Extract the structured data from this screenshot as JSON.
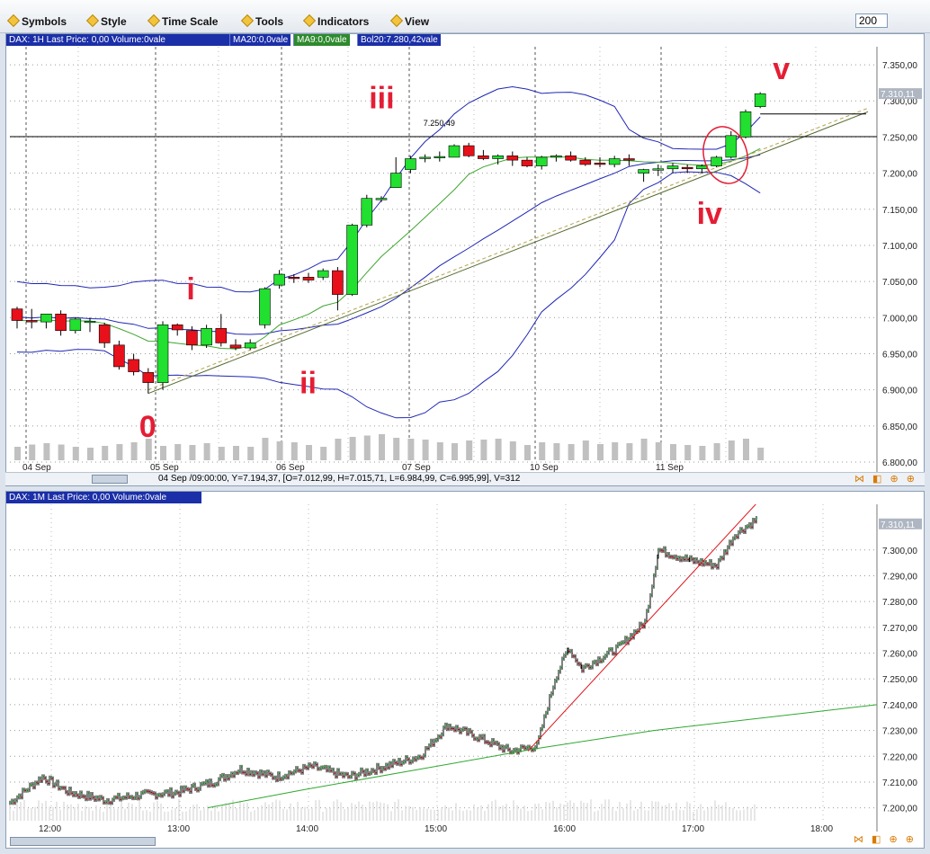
{
  "menu": {
    "symbols": "Symbols",
    "style": "Style",
    "time_scale": "Time Scale",
    "tools": "Tools",
    "indicators": "Indicators",
    "view": "View",
    "bars_count": "200"
  },
  "top_panel": {
    "header": "DAX: 1H Last Price: 0,00 Volume:0vale",
    "indicators": [
      "MA20:0,0vale",
      "MA9:0,0vale",
      "Bol20:7.280,42vale"
    ],
    "status": "04 Sep /09:00:00, Y=7.194,37, [O=7.012,99, H=7.015,71, L=6.984,99, C=6.995,99], V=312",
    "last_price_label": "7.310,11",
    "hline_label": "7.250,49",
    "wave_labels": [
      "0",
      "i",
      "ii",
      "iii",
      "iv",
      "v"
    ],
    "colors": {
      "up": "#21e02f",
      "down": "#e8101a",
      "bollinger": "#2027b4",
      "ma": "#3ea52e",
      "wave": "#e51d34"
    }
  },
  "bottom_panel": {
    "header": "DAX: 1M Last Price: 0,00 Volume:0vale",
    "last_price_label": "7.310,11"
  },
  "chart_data": [
    {
      "type": "candlestick",
      "title": "DAX: 1H",
      "ylim": [
        6800,
        7370
      ],
      "y_ticks": [
        "7.350,00",
        "7.300,00",
        "7.250,00",
        "7.200,00",
        "7.150,00",
        "7.100,00",
        "7.050,00",
        "7.000,00",
        "6.950,00",
        "6.900,00",
        "6.850,00",
        "6.800,00"
      ],
      "x_labels": [
        "04 Sep",
        "05 Sep",
        "06 Sep",
        "07 Sep",
        "10 Sep",
        "11 Sep"
      ],
      "candles": [
        {
          "o": 7012,
          "h": 7015,
          "l": 6985,
          "c": 6996
        },
        {
          "o": 6996,
          "h": 7012,
          "l": 6985,
          "c": 6994
        },
        {
          "o": 6994,
          "h": 7004,
          "l": 6985,
          "c": 7005
        },
        {
          "o": 7005,
          "h": 7010,
          "l": 6975,
          "c": 6982
        },
        {
          "o": 6982,
          "h": 7000,
          "l": 6978,
          "c": 6998
        },
        {
          "o": 6995,
          "h": 7000,
          "l": 6980,
          "c": 6995
        },
        {
          "o": 6990,
          "h": 6993,
          "l": 6958,
          "c": 6965
        },
        {
          "o": 6962,
          "h": 6968,
          "l": 6928,
          "c": 6932
        },
        {
          "o": 6942,
          "h": 6950,
          "l": 6920,
          "c": 6925
        },
        {
          "o": 6924,
          "h": 6930,
          "l": 6895,
          "c": 6910
        },
        {
          "o": 6910,
          "h": 6995,
          "l": 6900,
          "c": 6990
        },
        {
          "o": 6990,
          "h": 6992,
          "l": 6975,
          "c": 6983
        },
        {
          "o": 6982,
          "h": 6988,
          "l": 6955,
          "c": 6962
        },
        {
          "o": 6962,
          "h": 6990,
          "l": 6958,
          "c": 6985
        },
        {
          "o": 6985,
          "h": 7005,
          "l": 6960,
          "c": 6965
        },
        {
          "o": 6962,
          "h": 6970,
          "l": 6955,
          "c": 6958
        },
        {
          "o": 6958,
          "h": 6970,
          "l": 6955,
          "c": 6965
        },
        {
          "o": 6990,
          "h": 7042,
          "l": 6985,
          "c": 7040
        },
        {
          "o": 7045,
          "h": 7066,
          "l": 7040,
          "c": 7060
        },
        {
          "o": 7056,
          "h": 7060,
          "l": 7048,
          "c": 7054
        },
        {
          "o": 7056,
          "h": 7062,
          "l": 7048,
          "c": 7052
        },
        {
          "o": 7056,
          "h": 7068,
          "l": 7052,
          "c": 7065
        },
        {
          "o": 7065,
          "h": 7070,
          "l": 7010,
          "c": 7032
        },
        {
          "o": 7032,
          "h": 7130,
          "l": 7030,
          "c": 7128
        },
        {
          "o": 7128,
          "h": 7170,
          "l": 7125,
          "c": 7165
        },
        {
          "o": 7165,
          "h": 7168,
          "l": 7160,
          "c": 7165
        },
        {
          "o": 7180,
          "h": 7222,
          "l": 7180,
          "c": 7200
        },
        {
          "o": 7205,
          "h": 7224,
          "l": 7200,
          "c": 7220
        },
        {
          "o": 7222,
          "h": 7226,
          "l": 7215,
          "c": 7222
        },
        {
          "o": 7222,
          "h": 7230,
          "l": 7216,
          "c": 7223
        },
        {
          "o": 7222,
          "h": 7240,
          "l": 7222,
          "c": 7238
        },
        {
          "o": 7238,
          "h": 7242,
          "l": 7222,
          "c": 7224
        },
        {
          "o": 7224,
          "h": 7232,
          "l": 7218,
          "c": 7220
        },
        {
          "o": 7220,
          "h": 7226,
          "l": 7212,
          "c": 7224
        },
        {
          "o": 7224,
          "h": 7230,
          "l": 7210,
          "c": 7218
        },
        {
          "o": 7218,
          "h": 7222,
          "l": 7208,
          "c": 7210
        },
        {
          "o": 7210,
          "h": 7224,
          "l": 7205,
          "c": 7222
        },
        {
          "o": 7222,
          "h": 7226,
          "l": 7216,
          "c": 7224
        },
        {
          "o": 7224,
          "h": 7230,
          "l": 7216,
          "c": 7218
        },
        {
          "o": 7218,
          "h": 7222,
          "l": 7210,
          "c": 7212
        },
        {
          "o": 7214,
          "h": 7222,
          "l": 7208,
          "c": 7212
        },
        {
          "o": 7212,
          "h": 7224,
          "l": 7208,
          "c": 7220
        },
        {
          "o": 7220,
          "h": 7226,
          "l": 7210,
          "c": 7218
        },
        {
          "o": 7200,
          "h": 7206,
          "l": 7188,
          "c": 7205
        },
        {
          "o": 7205,
          "h": 7212,
          "l": 7196,
          "c": 7206
        },
        {
          "o": 7206,
          "h": 7214,
          "l": 7200,
          "c": 7210
        },
        {
          "o": 7208,
          "h": 7212,
          "l": 7200,
          "c": 7206
        },
        {
          "o": 7206,
          "h": 7212,
          "l": 7200,
          "c": 7210
        },
        {
          "o": 7210,
          "h": 7224,
          "l": 7208,
          "c": 7222
        },
        {
          "o": 7222,
          "h": 7258,
          "l": 7220,
          "c": 7252
        },
        {
          "o": 7250,
          "h": 7288,
          "l": 7248,
          "c": 7285
        },
        {
          "o": 7292,
          "h": 7312,
          "l": 7290,
          "c": 7310
        }
      ],
      "volume": [
        30,
        35,
        38,
        35,
        30,
        28,
        32,
        36,
        40,
        48,
        32,
        36,
        34,
        38,
        30,
        32,
        30,
        50,
        42,
        40,
        34,
        30,
        48,
        52,
        55,
        58,
        50,
        48,
        46,
        40,
        38,
        44,
        46,
        48,
        42,
        34,
        40,
        38,
        36,
        44,
        36,
        40,
        38,
        48,
        40,
        36,
        34,
        32,
        38,
        44,
        48,
        28
      ],
      "hline": 7250.49,
      "last_price": 7310.11
    },
    {
      "type": "candlestick",
      "title": "DAX: 1M",
      "ylim": [
        7195,
        7317
      ],
      "y_ticks": [
        "7.300,00",
        "7.290,00",
        "7.280,00",
        "7.270,00",
        "7.260,00",
        "7.250,00",
        "7.240,00",
        "7.230,00",
        "7.220,00",
        "7.210,00",
        "7.200,00"
      ],
      "x_labels": [
        "12:00",
        "13:00",
        "14:00",
        "15:00",
        "16:00",
        "17:00",
        "18:00"
      ],
      "last_price": 7310.11
    }
  ]
}
